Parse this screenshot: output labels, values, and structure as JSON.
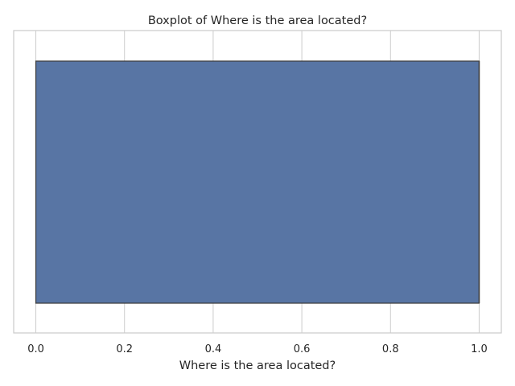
{
  "chart_data": {
    "type": "boxplot",
    "title": "Boxplot of Where is the area located?",
    "xlabel": "Where is the area located?",
    "ylabel": "",
    "orientation": "horizontal",
    "xlim": [
      -0.05,
      1.05
    ],
    "x_ticks": [
      0.0,
      0.2,
      0.4,
      0.6,
      0.8,
      1.0
    ],
    "x_tick_labels": [
      "0.0",
      "0.2",
      "0.4",
      "0.6",
      "0.8",
      "1.0"
    ],
    "grid": true,
    "box": {
      "whisker_low": 0.0,
      "q1": 0.0,
      "median": 1.0,
      "q3": 1.0,
      "whisker_high": 1.0
    },
    "colors": {
      "box_fill": "#5875a4",
      "box_edge": "#3d3d3d",
      "grid": "#cccccc",
      "spine": "#cccccc",
      "text": "#262626"
    }
  }
}
